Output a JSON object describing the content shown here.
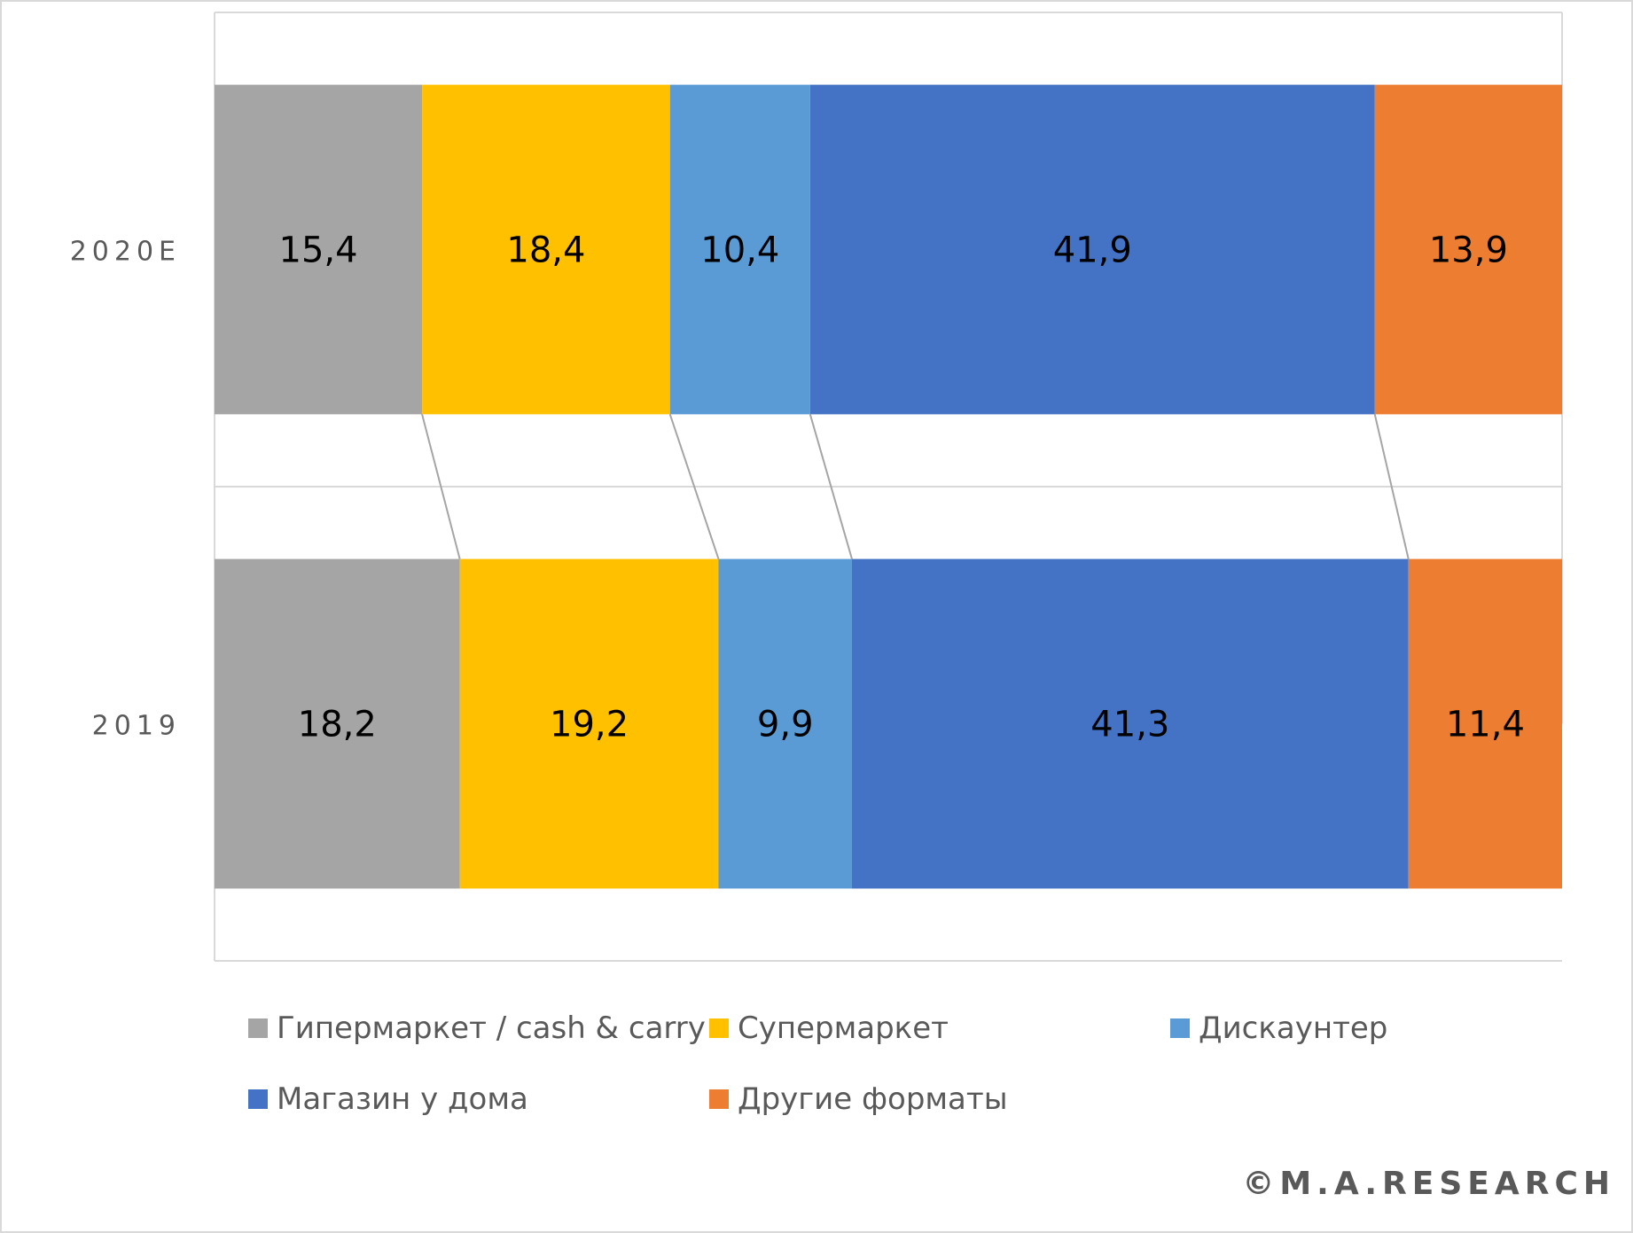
{
  "chart_data": {
    "type": "bar",
    "orientation": "horizontal",
    "stacked": true,
    "categories": [
      "2020E",
      "2019"
    ],
    "series": [
      {
        "name": "Гипермаркет / cash & carry",
        "color": "#a5a5a5",
        "values": [
          15.4,
          18.2
        ],
        "labels": [
          "15,4",
          "18,2"
        ]
      },
      {
        "name": "Супермаркет",
        "color": "#ffc000",
        "values": [
          18.4,
          19.2
        ],
        "labels": [
          "18,4",
          "19,2"
        ]
      },
      {
        "name": "Дискаунтер",
        "color": "#5b9bd5",
        "values": [
          10.4,
          9.9
        ],
        "labels": [
          "10,4",
          "9,9"
        ]
      },
      {
        "name": "Магазин у дома",
        "color": "#4472c4",
        "values": [
          41.9,
          41.3
        ],
        "labels": [
          "41,9",
          "41,3"
        ]
      },
      {
        "name": "Другие форматы",
        "color": "#ed7d31",
        "values": [
          13.9,
          11.4
        ],
        "labels": [
          "13,9",
          "11,4"
        ]
      }
    ],
    "xlim": [
      0,
      100
    ],
    "series_lines": true,
    "legend_position": "bottom",
    "grid": true
  },
  "copyright": "©M.A.RESEARCH"
}
